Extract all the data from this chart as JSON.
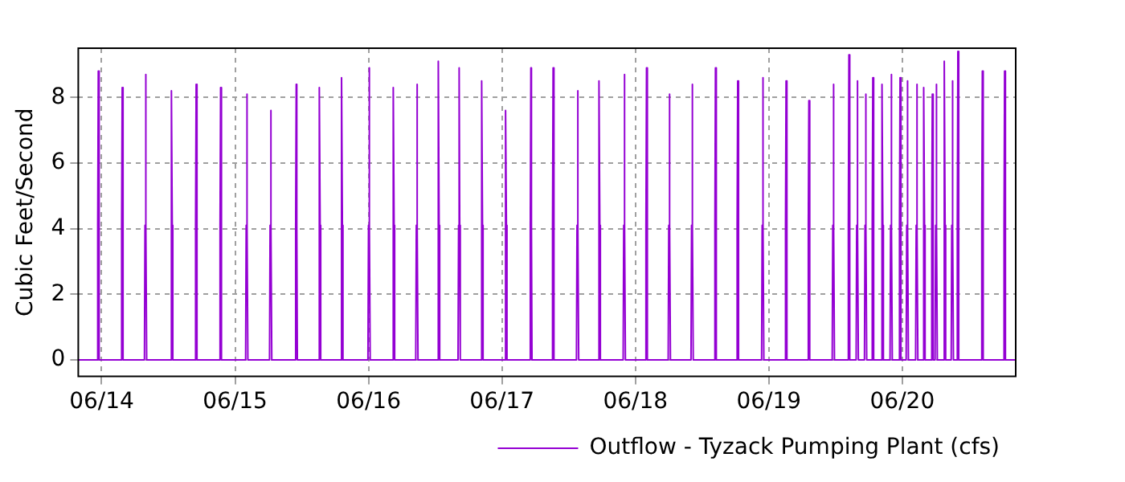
{
  "chart_data": {
    "type": "line",
    "ylabel": "Cubic Feet/Second",
    "xlim": [
      "--06-13T19:48",
      "--06-20T20:24"
    ],
    "ylim": [
      -0.5,
      9.5
    ],
    "yticks": [
      0,
      2,
      4,
      6,
      8
    ],
    "xticks": [
      {
        "value": "--06-14",
        "label": "06/14"
      },
      {
        "value": "--06-15",
        "label": "06/15"
      },
      {
        "value": "--06-16",
        "label": "06/16"
      },
      {
        "value": "--06-17",
        "label": "06/17"
      },
      {
        "value": "--06-18",
        "label": "06/18"
      },
      {
        "value": "--06-19",
        "label": "06/19"
      },
      {
        "value": "--06-20",
        "label": "06/20"
      }
    ],
    "grid": true,
    "legend": "bottom right",
    "marker": "none",
    "line_style": "solid",
    "series": [
      {
        "name": "Outflow - Tyzack Pumping Plant (cfs)",
        "color": "#9400d3",
        "x": [
          "--06-13T19:48",
          "--06-13T23:12",
          "--06-13T23:18",
          "--06-13T23:24",
          "--06-13T23:30",
          "--06-13T23:36",
          "--06-14T03:30",
          "--06-14T03:36",
          "--06-14T03:42",
          "--06-14T03:48",
          "--06-14T03:54",
          "--06-14T07:42",
          "--06-14T07:48",
          "--06-14T07:54",
          "--06-14T08:00",
          "--06-14T08:06",
          "--06-14T12:24",
          "--06-14T12:30",
          "--06-14T12:36",
          "--06-14T12:42",
          "--06-14T12:48",
          "--06-14T16:48",
          "--06-14T16:54",
          "--06-14T17:00",
          "--06-14T17:06",
          "--06-14T17:12",
          "--06-14T21:12",
          "--06-14T21:18",
          "--06-14T21:24",
          "--06-14T21:30",
          "--06-14T21:36",
          "--06-15T01:54",
          "--06-15T02:00",
          "--06-15T02:06",
          "--06-15T02:12",
          "--06-15T02:18",
          "--06-15T06:12",
          "--06-15T06:18",
          "--06-15T06:24",
          "--06-15T06:30",
          "--06-15T06:36",
          "--06-15T10:48",
          "--06-15T10:54",
          "--06-15T11:00",
          "--06-15T11:06",
          "--06-15T11:12",
          "--06-15T15:00",
          "--06-15T15:06",
          "--06-15T15:12",
          "--06-15T15:18",
          "--06-15T15:24",
          "--06-15T19:00",
          "--06-15T19:06",
          "--06-15T19:12",
          "--06-15T19:18",
          "--06-15T19:24",
          "--06-15T23:54",
          "--06-16T00:00",
          "--06-16T00:06",
          "--06-16T00:12",
          "--06-16T00:18",
          "--06-16T04:18",
          "--06-16T04:24",
          "--06-16T04:30",
          "--06-16T04:36",
          "--06-16T04:42",
          "--06-16T08:30",
          "--06-16T08:36",
          "--06-16T08:42",
          "--06-16T08:48",
          "--06-16T08:54",
          "--06-16T12:24",
          "--06-16T12:30",
          "--06-16T12:36",
          "--06-16T12:42",
          "--06-16T12:48",
          "--06-16T16:06",
          "--06-16T16:12",
          "--06-16T16:18",
          "--06-16T16:24",
          "--06-16T16:30",
          "--06-16T20:12",
          "--06-16T20:18",
          "--06-16T20:24",
          "--06-16T20:30",
          "--06-16T20:36",
          "--06-17T00:30",
          "--06-17T00:36",
          "--06-17T00:42",
          "--06-17T00:48",
          "--06-17T00:54",
          "--06-17T05:00",
          "--06-17T05:06",
          "--06-17T05:12",
          "--06-17T05:18",
          "--06-17T05:24",
          "--06-17T09:00",
          "--06-17T09:06",
          "--06-17T09:12",
          "--06-17T09:18",
          "--06-17T09:24",
          "--06-17T13:24",
          "--06-17T13:30",
          "--06-17T13:36",
          "--06-17T13:42",
          "--06-17T13:48",
          "--06-17T17:18",
          "--06-17T17:24",
          "--06-17T17:30",
          "--06-17T17:36",
          "--06-17T17:42",
          "--06-17T21:48",
          "--06-17T21:54",
          "--06-17T22:00",
          "--06-17T22:06",
          "--06-17T22:12",
          "--06-18T01:48",
          "--06-18T01:54",
          "--06-18T02:00",
          "--06-18T02:06",
          "--06-18T02:12",
          "--06-18T05:54",
          "--06-18T06:00",
          "--06-18T06:06",
          "--06-18T06:12",
          "--06-18T06:18",
          "--06-18T10:00",
          "--06-18T10:06",
          "--06-18T10:12",
          "--06-18T10:18",
          "--06-18T10:24",
          "--06-18T14:12",
          "--06-18T14:18",
          "--06-18T14:24",
          "--06-18T14:30",
          "--06-18T14:36",
          "--06-18T18:12",
          "--06-18T18:18",
          "--06-18T18:24",
          "--06-18T18:30",
          "--06-18T18:36",
          "--06-18T22:42",
          "--06-18T22:48",
          "--06-18T22:54",
          "--06-18T23:00",
          "--06-18T23:06",
          "--06-19T02:54",
          "--06-19T03:00",
          "--06-19T03:06",
          "--06-19T03:12",
          "--06-19T03:18",
          "--06-19T07:00",
          "--06-19T07:06",
          "--06-19T07:12",
          "--06-19T07:18",
          "--06-19T07:24",
          "--06-19T11:24",
          "--06-19T11:30",
          "--06-19T11:36",
          "--06-19T11:42",
          "--06-19T11:48",
          "--06-19T14:12",
          "--06-19T14:18",
          "--06-19T14:24",
          "--06-19T14:30",
          "--06-19T14:36",
          "--06-19T15:42",
          "--06-19T15:48",
          "--06-19T15:54",
          "--06-19T16:00",
          "--06-19T16:06",
          "--06-19T17:12",
          "--06-19T17:18",
          "--06-19T17:24",
          "--06-19T17:30",
          "--06-19T17:36",
          "--06-19T18:30",
          "--06-19T18:36",
          "--06-19T18:42",
          "--06-19T18:48",
          "--06-19T18:54",
          "--06-19T20:12",
          "--06-19T20:18",
          "--06-19T20:24",
          "--06-19T20:30",
          "--06-19T20:36",
          "--06-19T21:48",
          "--06-19T21:54",
          "--06-19T22:00",
          "--06-19T22:06",
          "--06-19T22:12",
          "--06-19T23:24",
          "--06-19T23:30",
          "--06-19T23:36",
          "--06-19T23:42",
          "--06-19T23:48",
          "--06-20T00:42",
          "--06-20T00:48",
          "--06-20T00:54",
          "--06-20T01:00",
          "--06-20T01:06",
          "--06-20T02:24",
          "--06-20T02:30",
          "--06-20T02:36",
          "--06-20T02:42",
          "--06-20T02:48",
          "--06-20T03:42",
          "--06-20T03:48",
          "--06-20T03:54",
          "--06-20T04:00",
          "--06-20T04:06",
          "--06-20T05:12",
          "--06-20T05:18",
          "--06-20T05:24",
          "--06-20T05:30",
          "--06-20T05:36",
          "--06-20T05:54",
          "--06-20T06:00",
          "--06-20T06:06",
          "--06-20T06:12",
          "--06-20T06:18",
          "--06-20T07:24",
          "--06-20T07:30",
          "--06-20T07:36",
          "--06-20T07:42",
          "--06-20T07:48",
          "--06-20T08:48",
          "--06-20T08:54",
          "--06-20T09:00",
          "--06-20T09:06",
          "--06-20T09:12",
          "--06-20T09:48",
          "--06-20T09:54",
          "--06-20T10:00",
          "--06-20T10:06",
          "--06-20T10:12",
          "--06-20T14:12",
          "--06-20T14:18",
          "--06-20T14:24",
          "--06-20T14:30",
          "--06-20T14:36",
          "--06-20T18:12",
          "--06-20T18:18",
          "--06-20T18:24",
          "--06-20T18:30",
          "--06-20T18:36",
          "--06-20T20:24"
        ],
        "values": [
          0,
          0,
          4.1,
          8.8,
          4.1,
          0,
          0,
          4.1,
          8.3,
          4.1,
          0,
          0,
          4.1,
          8.7,
          4.1,
          0,
          0,
          4.1,
          8.2,
          4.1,
          0,
          0,
          4.1,
          8.4,
          4.1,
          0,
          0,
          4.1,
          8.3,
          4.1,
          0,
          0,
          4.1,
          8.1,
          4.1,
          0,
          0,
          4.1,
          7.6,
          4.1,
          0,
          0,
          4.1,
          8.4,
          4.1,
          0,
          0,
          4.1,
          8.3,
          4.1,
          0,
          0,
          4.1,
          8.6,
          4.1,
          0,
          0,
          4.1,
          8.9,
          4.1,
          0,
          0,
          4.1,
          8.3,
          4.1,
          0,
          0,
          4.1,
          8.4,
          4.1,
          0,
          0,
          4.1,
          9.1,
          4.1,
          0,
          0,
          4.1,
          8.9,
          4.1,
          0,
          0,
          4.1,
          8.5,
          4.1,
          0,
          0,
          4.1,
          7.6,
          4.1,
          0,
          0,
          4.1,
          8.9,
          4.1,
          0,
          0,
          4.1,
          8.9,
          4.1,
          0,
          0,
          4.1,
          8.2,
          4.1,
          0,
          0,
          4.1,
          8.5,
          4.1,
          0,
          0,
          4.1,
          8.7,
          4.1,
          0,
          0,
          4.1,
          8.9,
          4.1,
          0,
          0,
          4.1,
          8.1,
          4.1,
          0,
          0,
          4.1,
          8.4,
          4.1,
          0,
          0,
          4.1,
          8.9,
          4.1,
          0,
          0,
          4.1,
          8.5,
          4.1,
          0,
          0,
          4.1,
          8.6,
          4.1,
          0,
          0,
          4.1,
          8.5,
          4.1,
          0,
          0,
          4.1,
          7.9,
          4.1,
          0,
          0,
          4.1,
          8.4,
          4.1,
          0,
          0,
          4.1,
          9.3,
          4.1,
          0,
          0,
          4.1,
          8.5,
          4.1,
          0,
          0,
          4.1,
          8.1,
          4.1,
          0,
          0,
          4.1,
          8.6,
          4.1,
          0,
          0,
          4.1,
          8.4,
          4.1,
          0,
          0,
          4.1,
          8.7,
          4.1,
          0,
          0,
          4.1,
          8.6,
          4.1,
          0,
          0,
          4.1,
          8.5,
          4.1,
          0,
          0,
          4.1,
          8.4,
          4.1,
          0,
          0,
          4.1,
          8.3,
          4.1,
          0,
          0,
          4.1,
          8.1,
          4.1,
          0,
          0,
          4.1,
          8.4,
          4.1,
          0,
          0,
          4.1,
          9.1,
          4.1,
          0,
          0,
          4.1,
          8.5,
          4.1,
          0,
          0,
          4.1,
          9.4,
          4.1,
          0,
          0,
          4.1,
          8.8,
          4.1,
          0,
          0,
          4.1,
          8.8,
          4.1,
          0,
          0
        ]
      }
    ]
  }
}
